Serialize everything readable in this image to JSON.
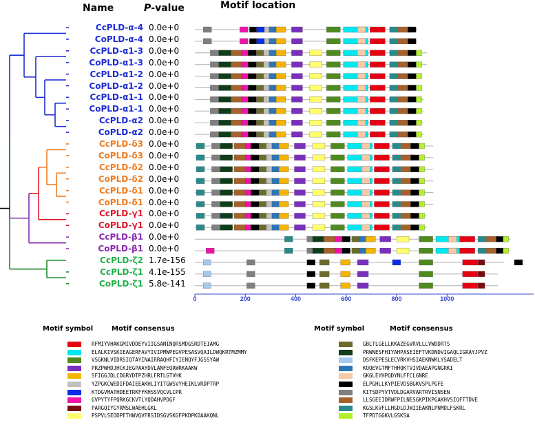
{
  "headers": {
    "name": "Name",
    "pvalue_p": "P",
    "pvalue_rest": "-value",
    "motif_location": "Motif location"
  },
  "genes": [
    {
      "name": "CcPLD-α-4",
      "p": "0.0e+0",
      "color": "#1f2dd6",
      "len": 345
    },
    {
      "name": "CoPLD-α-4",
      "p": "0.0e+0",
      "color": "#1f2dd6",
      "len": 345
    },
    {
      "name": "CcPLD-α1-3",
      "p": "0.0e+0",
      "color": "#1f2dd6",
      "len": 360
    },
    {
      "name": "CoPLD-α1-3",
      "p": "0.0e+0",
      "color": "#1f2dd6",
      "len": 360
    },
    {
      "name": "CcPLD-α1-2",
      "p": "0.0e+0",
      "color": "#1f2dd6",
      "len": 350
    },
    {
      "name": "CoPLD-α1-2",
      "p": "0.0e+0",
      "color": "#1f2dd6",
      "len": 350
    },
    {
      "name": "CcPLD-α1-1",
      "p": "0.0e+0",
      "color": "#1f2dd6",
      "len": 355
    },
    {
      "name": "CoPLD-α1-1",
      "p": "0.0e+0",
      "color": "#1f2dd6",
      "len": 355
    },
    {
      "name": "CcPLD-α2",
      "p": "0.0e+0",
      "color": "#1f2dd6",
      "len": 355
    },
    {
      "name": "CoPLD-α2",
      "p": "0.0e+0",
      "color": "#1f2dd6",
      "len": 355
    },
    {
      "name": "CcPLD-δ3",
      "p": "0.0e+0",
      "color": "#ef7d22",
      "len": 370
    },
    {
      "name": "CoPLD-δ3",
      "p": "0.0e+0",
      "color": "#ef7d22",
      "len": 370
    },
    {
      "name": "CcPLD-δ2",
      "p": "0.0e+0",
      "color": "#ef7d22",
      "len": 370
    },
    {
      "name": "CoPLD-δ2",
      "p": "0.0e+0",
      "color": "#ef7d22",
      "len": 370
    },
    {
      "name": "CcPLD-δ1",
      "p": "0.0e+0",
      "color": "#ef7d22",
      "len": 370
    },
    {
      "name": "CoPLD-δ1",
      "p": "0.0e+0",
      "color": "#ef7d22",
      "len": 370
    },
    {
      "name": "CcPLD-γ1",
      "p": "0.0e+0",
      "color": "#e0192c",
      "len": 360
    },
    {
      "name": "CoPLD-γ1",
      "p": "0.0e+0",
      "color": "#e0192c",
      "len": 360
    },
    {
      "name": "CcPLD-β1",
      "p": "0.0e+0",
      "color": "#8a2bb0",
      "len": 490
    },
    {
      "name": "CoPLD-β1",
      "p": "0.0e+0",
      "color": "#8a2bb0",
      "len": 490
    },
    {
      "name": "CcPLD-ζ2",
      "p": "1.7e-156",
      "color": "#22b04a",
      "len": 480
    },
    {
      "name": "CcPLD-ζ1",
      "p": "4.1e-155",
      "color": "#22b04a",
      "len": 470
    },
    {
      "name": "CoPLD-ζ1",
      "p": "5.8e-141",
      "color": "#22b04a",
      "len": 470
    }
  ],
  "axis": {
    "ticks": [
      "0",
      "200",
      "400",
      "600",
      "800",
      "1000"
    ],
    "tick_values": [
      0,
      200,
      400,
      600,
      800,
      1000
    ]
  },
  "legend": {
    "header_symbol": "Motif symbol",
    "header_consensus": "Motif consensus",
    "left": [
      {
        "color": "#e60012",
        "seq": "RFMIYVHAKGMIVDDEYVIIGSANINQRSMDGSRDTEIAMG"
      },
      {
        "color": "#00e8ef",
        "seq": "ELALKIVSKIEAGERFAVYIVIPMWPEGVPESASVQAILDWQKRTMZMMY"
      },
      {
        "color": "#4f8a1f",
        "seq": "VSGKNLVIDRSIQTAYINAIRRAQHFIYIENQYFJGSSYAW"
      },
      {
        "color": "#7b2fbe",
        "seq": "PRZPWHDJHCKJEGPAAYDVLANFEQRWRKAAKW"
      },
      {
        "color": "#f5b400",
        "seq": "SFIGGJDLCDGRYDTPZHRLFRTLGTVHK"
      },
      {
        "color": "#c0c0c0",
        "seq": "YZPGKCWEDIFDAIEEAKHLIYITGWSVYHEIKLVRDPTRP"
      },
      {
        "color": "#0a2be8",
        "seq": "KTDGVMATHDEETRKFFKHSSVQCVLCPR"
      },
      {
        "color": "#ef12a8",
        "seq": "GVPYTYFPQRKGCKVTLYQDAHVPDGF"
      },
      {
        "color": "#7a0a12",
        "seq": "PARGQIYGYRMSLWAEHLGKL"
      },
      {
        "color": "#ffff6e",
        "seq": "PSPVLSEDDPETHWVQVFRSIDSGVSKGFPKDPKDAAKQNL"
      }
    ],
    "right": [
      {
        "color": "#6b6b2a",
        "seq": "GBLTLGELLKKAZEGVRVLLLVWDDRTS"
      },
      {
        "color": "#0f3d1a",
        "seq": "PRWNESFHIYAHPASEIEFTVKDNDVIGAQLIGRAYJPVZ"
      },
      {
        "color": "#a6c8ee",
        "seq": "DSFKEPESLECVRKVHSIAEKNWKLYSADELT"
      },
      {
        "color": "#2e75b6",
        "seq": "KQQEVGTMFTHHQKTVIVDAEAPGNGRKI"
      },
      {
        "color": "#f6c9a6",
        "seq": "GKGLEYHPQDYNLFFCLGNRE"
      },
      {
        "color": "#000000",
        "seq": "ELPGHLLKYPIEVDSBGKVSPLPGFE"
      },
      {
        "color": "#7f7f7f",
        "seq": "KITSDPYVTVDLDGARVARTRVISNSEN"
      },
      {
        "color": "#a5622a",
        "seq": "LLSGEEIDRWFPILNESGKPIKPGAKHVSIQFTTDVE"
      },
      {
        "color": "#2a8a8a",
        "seq": "KGSLKVFLLHGDLDJWIIEAKNLPNMDLFSKRL"
      },
      {
        "color": "#b4f02a",
        "seq": "TFPDTGGKVLGSKSA"
      }
    ]
  }
}
